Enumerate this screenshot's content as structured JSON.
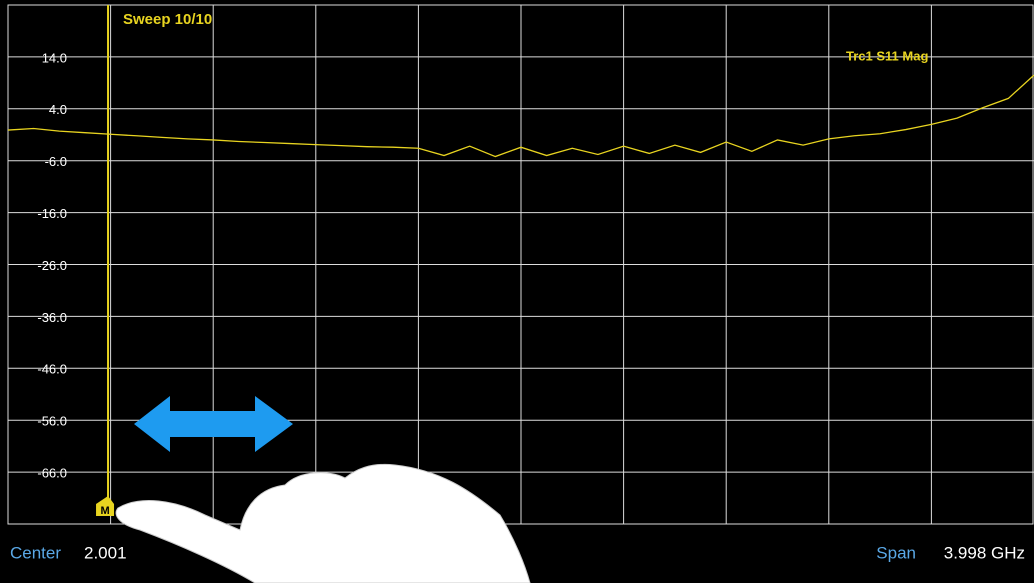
{
  "chart_data": {
    "type": "line",
    "sweep_label": "Sweep 10/10",
    "trace_label": "Trc1 S11 Mag",
    "center_label": "Center",
    "center_value": "2.001",
    "span_label": "Span",
    "span_value": "3.998 GHz",
    "marker": {
      "label": "M",
      "x": 0.39
    },
    "x": [
      0.0,
      0.1,
      0.2,
      0.3,
      0.4,
      0.5,
      0.6,
      0.7,
      0.8,
      0.9,
      1.0,
      1.1,
      1.2,
      1.3,
      1.4,
      1.5,
      1.6,
      1.7,
      1.8,
      1.9,
      2.0,
      2.1,
      2.2,
      2.3,
      2.4,
      2.5,
      2.6,
      2.7,
      2.8,
      2.9,
      3.0,
      3.1,
      3.2,
      3.3,
      3.4,
      3.5,
      3.6,
      3.7,
      3.8,
      3.9,
      4.0
    ],
    "series": [
      {
        "name": "Trc1 S11 Mag",
        "color": "#e8d420",
        "values": [
          -0.1,
          0.2,
          -0.3,
          -0.6,
          -0.9,
          -1.2,
          -1.5,
          -1.8,
          -2.0,
          -2.3,
          -2.5,
          -2.7,
          -2.9,
          -3.1,
          -3.3,
          -3.4,
          -3.6,
          -5.0,
          -3.2,
          -5.2,
          -3.4,
          -5.0,
          -3.6,
          -4.8,
          -3.2,
          -4.6,
          -3.0,
          -4.4,
          -2.4,
          -4.2,
          -2.0,
          -3.0,
          -1.8,
          -1.2,
          -0.8,
          0.0,
          1.0,
          2.2,
          4.2,
          6.0,
          10.5
        ]
      }
    ],
    "xlim": [
      0.0,
      4.0
    ],
    "ylim": [
      -76,
      24
    ],
    "yticks": [
      {
        "value": 14,
        "label": "14.0"
      },
      {
        "value": 4,
        "label": "4.0"
      },
      {
        "value": -6,
        "label": "-6.0"
      },
      {
        "value": -16,
        "label": "-16.0"
      },
      {
        "value": -26,
        "label": "-26.0"
      },
      {
        "value": -36,
        "label": "-36.0"
      },
      {
        "value": -46,
        "label": "-46.0"
      },
      {
        "value": -56,
        "label": "-56.0"
      },
      {
        "value": -66,
        "label": "-66.0"
      }
    ],
    "grid": true
  }
}
